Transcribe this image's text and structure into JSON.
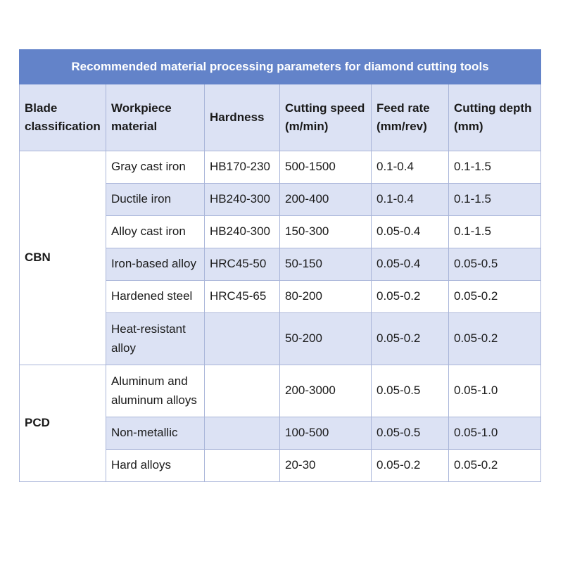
{
  "table": {
    "title": "Recommended material processing parameters for diamond cutting tools",
    "header": [
      "Blade classification",
      "Workpiece material",
      "Hardness",
      "Cutting speed (m/min)",
      "Feed rate (mm/rev)",
      "Cutting depth (mm)"
    ],
    "groups": [
      {
        "name": "CBN",
        "rows": [
          [
            "Gray cast iron",
            "HB170-230",
            "500-1500",
            "0.1-0.4",
            "0.1-1.5"
          ],
          [
            "Ductile iron",
            "HB240-300",
            "200-400",
            "0.1-0.4",
            "0.1-1.5"
          ],
          [
            "Alloy cast iron",
            "HB240-300",
            "150-300",
            "0.05-0.4",
            "0.1-1.5"
          ],
          [
            "Iron-based alloy",
            "HRC45-50",
            "50-150",
            "0.05-0.4",
            "0.05-0.5"
          ],
          [
            "Hardened steel",
            "HRC45-65",
            "80-200",
            "0.05-0.2",
            "0.05-0.2"
          ],
          [
            "Heat-resistant alloy",
            null,
            "50-200",
            "0.05-0.2",
            "0.05-0.2"
          ]
        ]
      },
      {
        "name": "PCD",
        "rows": [
          [
            "Aluminum and aluminum alloys",
            null,
            "200-3000",
            "0.05-0.5",
            "0.05-1.0"
          ],
          [
            "Non-metallic",
            null,
            "100-500",
            "0.05-0.5",
            "0.05-1.0"
          ],
          [
            "Hard alloys",
            null,
            "20-30",
            "0.05-0.2",
            "0.05-0.2"
          ]
        ]
      }
    ]
  }
}
